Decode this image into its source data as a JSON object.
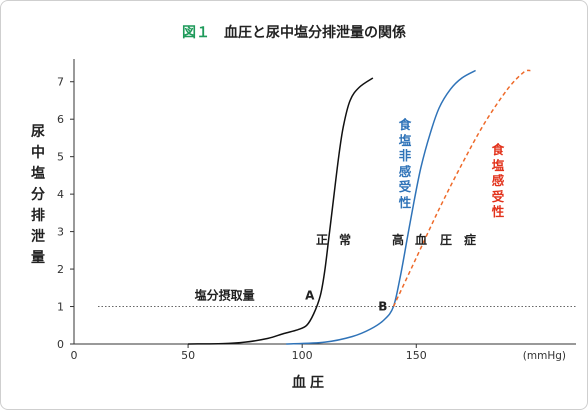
{
  "title": {
    "figure": "図１",
    "text": "血圧と尿中塩分排泄量の関係"
  },
  "chart_data": {
    "type": "line",
    "xlabel": "血圧",
    "ylabel": "尿中塩分排泄量",
    "x_unit": "(mmHg)",
    "xlim": [
      0,
      220
    ],
    "ylim": [
      0,
      7.5
    ],
    "x_ticks": [
      0,
      50,
      100,
      150
    ],
    "y_ticks": [
      0,
      1,
      2,
      3,
      4,
      5,
      6,
      7
    ],
    "grid": false,
    "reference_line": {
      "y": 1,
      "label": "塩分摂取量",
      "style": "dotted"
    },
    "series": [
      {
        "name": "正常",
        "color": "#111111",
        "style": "solid",
        "points": [
          [
            50,
            0
          ],
          [
            65,
            0.01
          ],
          [
            75,
            0.05
          ],
          [
            85,
            0.15
          ],
          [
            92,
            0.28
          ],
          [
            98,
            0.38
          ],
          [
            102,
            0.5
          ],
          [
            105,
            0.8
          ],
          [
            108,
            1.3
          ],
          [
            110,
            2.0
          ],
          [
            112,
            3.0
          ],
          [
            114,
            4.0
          ],
          [
            116,
            5.0
          ],
          [
            118,
            5.8
          ],
          [
            121,
            6.5
          ],
          [
            125,
            6.85
          ],
          [
            131,
            7.1
          ]
        ]
      },
      {
        "name": "食塩非感受性",
        "color": "#2f73b8",
        "style": "solid",
        "points": [
          [
            93,
            0
          ],
          [
            110,
            0.05
          ],
          [
            122,
            0.2
          ],
          [
            130,
            0.4
          ],
          [
            136,
            0.65
          ],
          [
            140,
            1.0
          ],
          [
            143,
            1.8
          ],
          [
            146,
            2.8
          ],
          [
            149,
            3.8
          ],
          [
            152,
            4.7
          ],
          [
            156,
            5.6
          ],
          [
            160,
            6.3
          ],
          [
            165,
            6.8
          ],
          [
            170,
            7.1
          ],
          [
            176,
            7.3
          ]
        ]
      },
      {
        "name": "食塩感受性",
        "color": "#ee6a2a",
        "style": "dashed",
        "points": [
          [
            140,
            1.0
          ],
          [
            150,
            2.3
          ],
          [
            160,
            3.6
          ],
          [
            170,
            4.8
          ],
          [
            180,
            5.9
          ],
          [
            190,
            6.8
          ],
          [
            197,
            7.25
          ],
          [
            200,
            7.3
          ]
        ]
      }
    ],
    "annotations": {
      "point_a": {
        "label": "A",
        "x": 108,
        "y": 1.3
      },
      "point_b": {
        "label": "B",
        "x": 140,
        "y": 1.0
      },
      "normal": "正常",
      "hypertension": "高血圧症"
    }
  },
  "series_labels": {
    "non_sensitive": "食塩非感受性",
    "sensitive": "食塩感受性"
  }
}
